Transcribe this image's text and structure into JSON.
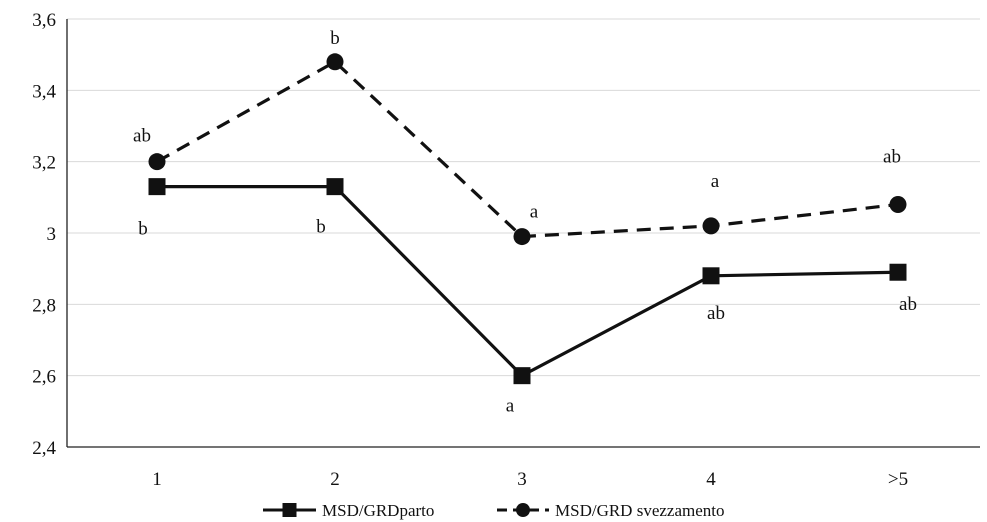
{
  "chart_data": {
    "type": "line",
    "title": "",
    "xlabel": "",
    "ylabel": "",
    "categories": [
      "1",
      "2",
      "3",
      "4",
      ">5"
    ],
    "ylim": [
      2.4,
      3.6
    ],
    "yticks": [
      "2,4",
      "2,6",
      "2,8",
      "3",
      "3,2",
      "3,4",
      "3,6"
    ],
    "grid": true,
    "legend_position": "bottom",
    "series": [
      {
        "name": "MSD/GRDparto",
        "values": [
          3.13,
          3.13,
          2.6,
          2.88,
          2.89
        ],
        "labels": [
          "b",
          "b",
          "a",
          "ab",
          "ab"
        ],
        "marker": "square",
        "line_style": "solid",
        "color": "#111111"
      },
      {
        "name": "MSD/GRD svezzamento",
        "values": [
          3.2,
          3.48,
          2.99,
          3.02,
          3.08
        ],
        "labels": [
          "ab",
          "b",
          "a",
          "a",
          "ab"
        ],
        "marker": "circle",
        "line_style": "dashed",
        "color": "#111111"
      }
    ]
  }
}
